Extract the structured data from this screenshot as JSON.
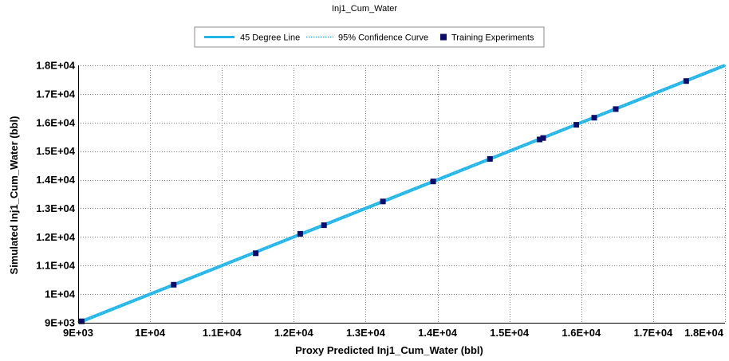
{
  "chart_data": {
    "type": "scatter",
    "title": "Inj1_Cum_Water",
    "xlabel": "Proxy Predicted Inj1_Cum_Water (bbl)",
    "ylabel": "Simulated Inj1_Cum_Water (bbl)",
    "xlim": [
      9000,
      18000
    ],
    "ylim": [
      9000,
      18000
    ],
    "x_ticks": [
      9000,
      10000,
      11000,
      12000,
      13000,
      14000,
      15000,
      16000,
      17000,
      18000
    ],
    "x_tick_labels": [
      "9E+03",
      "1E+04",
      "1.1E+04",
      "1.2E+04",
      "1.3E+04",
      "1.4E+04",
      "1.5E+04",
      "1.6E+04",
      "1.7E+04",
      "1.8E+04"
    ],
    "y_ticks": [
      9000,
      10000,
      11000,
      12000,
      13000,
      14000,
      15000,
      16000,
      17000,
      18000
    ],
    "y_tick_labels": [
      "9E+03",
      "1E+04",
      "1.1E+04",
      "1.2E+04",
      "1.3E+04",
      "1.4E+04",
      "1.5E+04",
      "1.6E+04",
      "1.7E+04",
      "1.8E+04"
    ],
    "grid": true,
    "legend_position": "top-center",
    "legend": [
      {
        "name": "45 Degree Line",
        "style": "solid-line",
        "color": "#1fb5e8"
      },
      {
        "name": "95% Confidence Curve",
        "style": "dotted-line",
        "color": "#1fb5e8"
      },
      {
        "name": "Training Experiments",
        "style": "square-marker",
        "color": "#0b0b6e"
      }
    ],
    "series": [
      {
        "name": "45 Degree Line",
        "type": "line",
        "color": "#1fb5e8",
        "x": [
          9000,
          18000
        ],
        "y": [
          9000,
          18000
        ]
      },
      {
        "name": "95% Confidence Curve",
        "type": "line",
        "style": "dotted",
        "color": "#1fb5e8",
        "x": [
          9000,
          18000
        ],
        "y": [
          9000,
          18000
        ]
      },
      {
        "name": "Training Experiments",
        "type": "scatter",
        "color": "#0b0b6e",
        "x": [
          9050,
          10330,
          11470,
          12090,
          12420,
          13240,
          13940,
          14730,
          15420,
          15470,
          15930,
          16180,
          16480,
          17460
        ],
        "y": [
          9050,
          10330,
          11430,
          12110,
          12410,
          13240,
          13940,
          14730,
          15410,
          15460,
          15920,
          16170,
          16470,
          17450
        ]
      }
    ]
  }
}
